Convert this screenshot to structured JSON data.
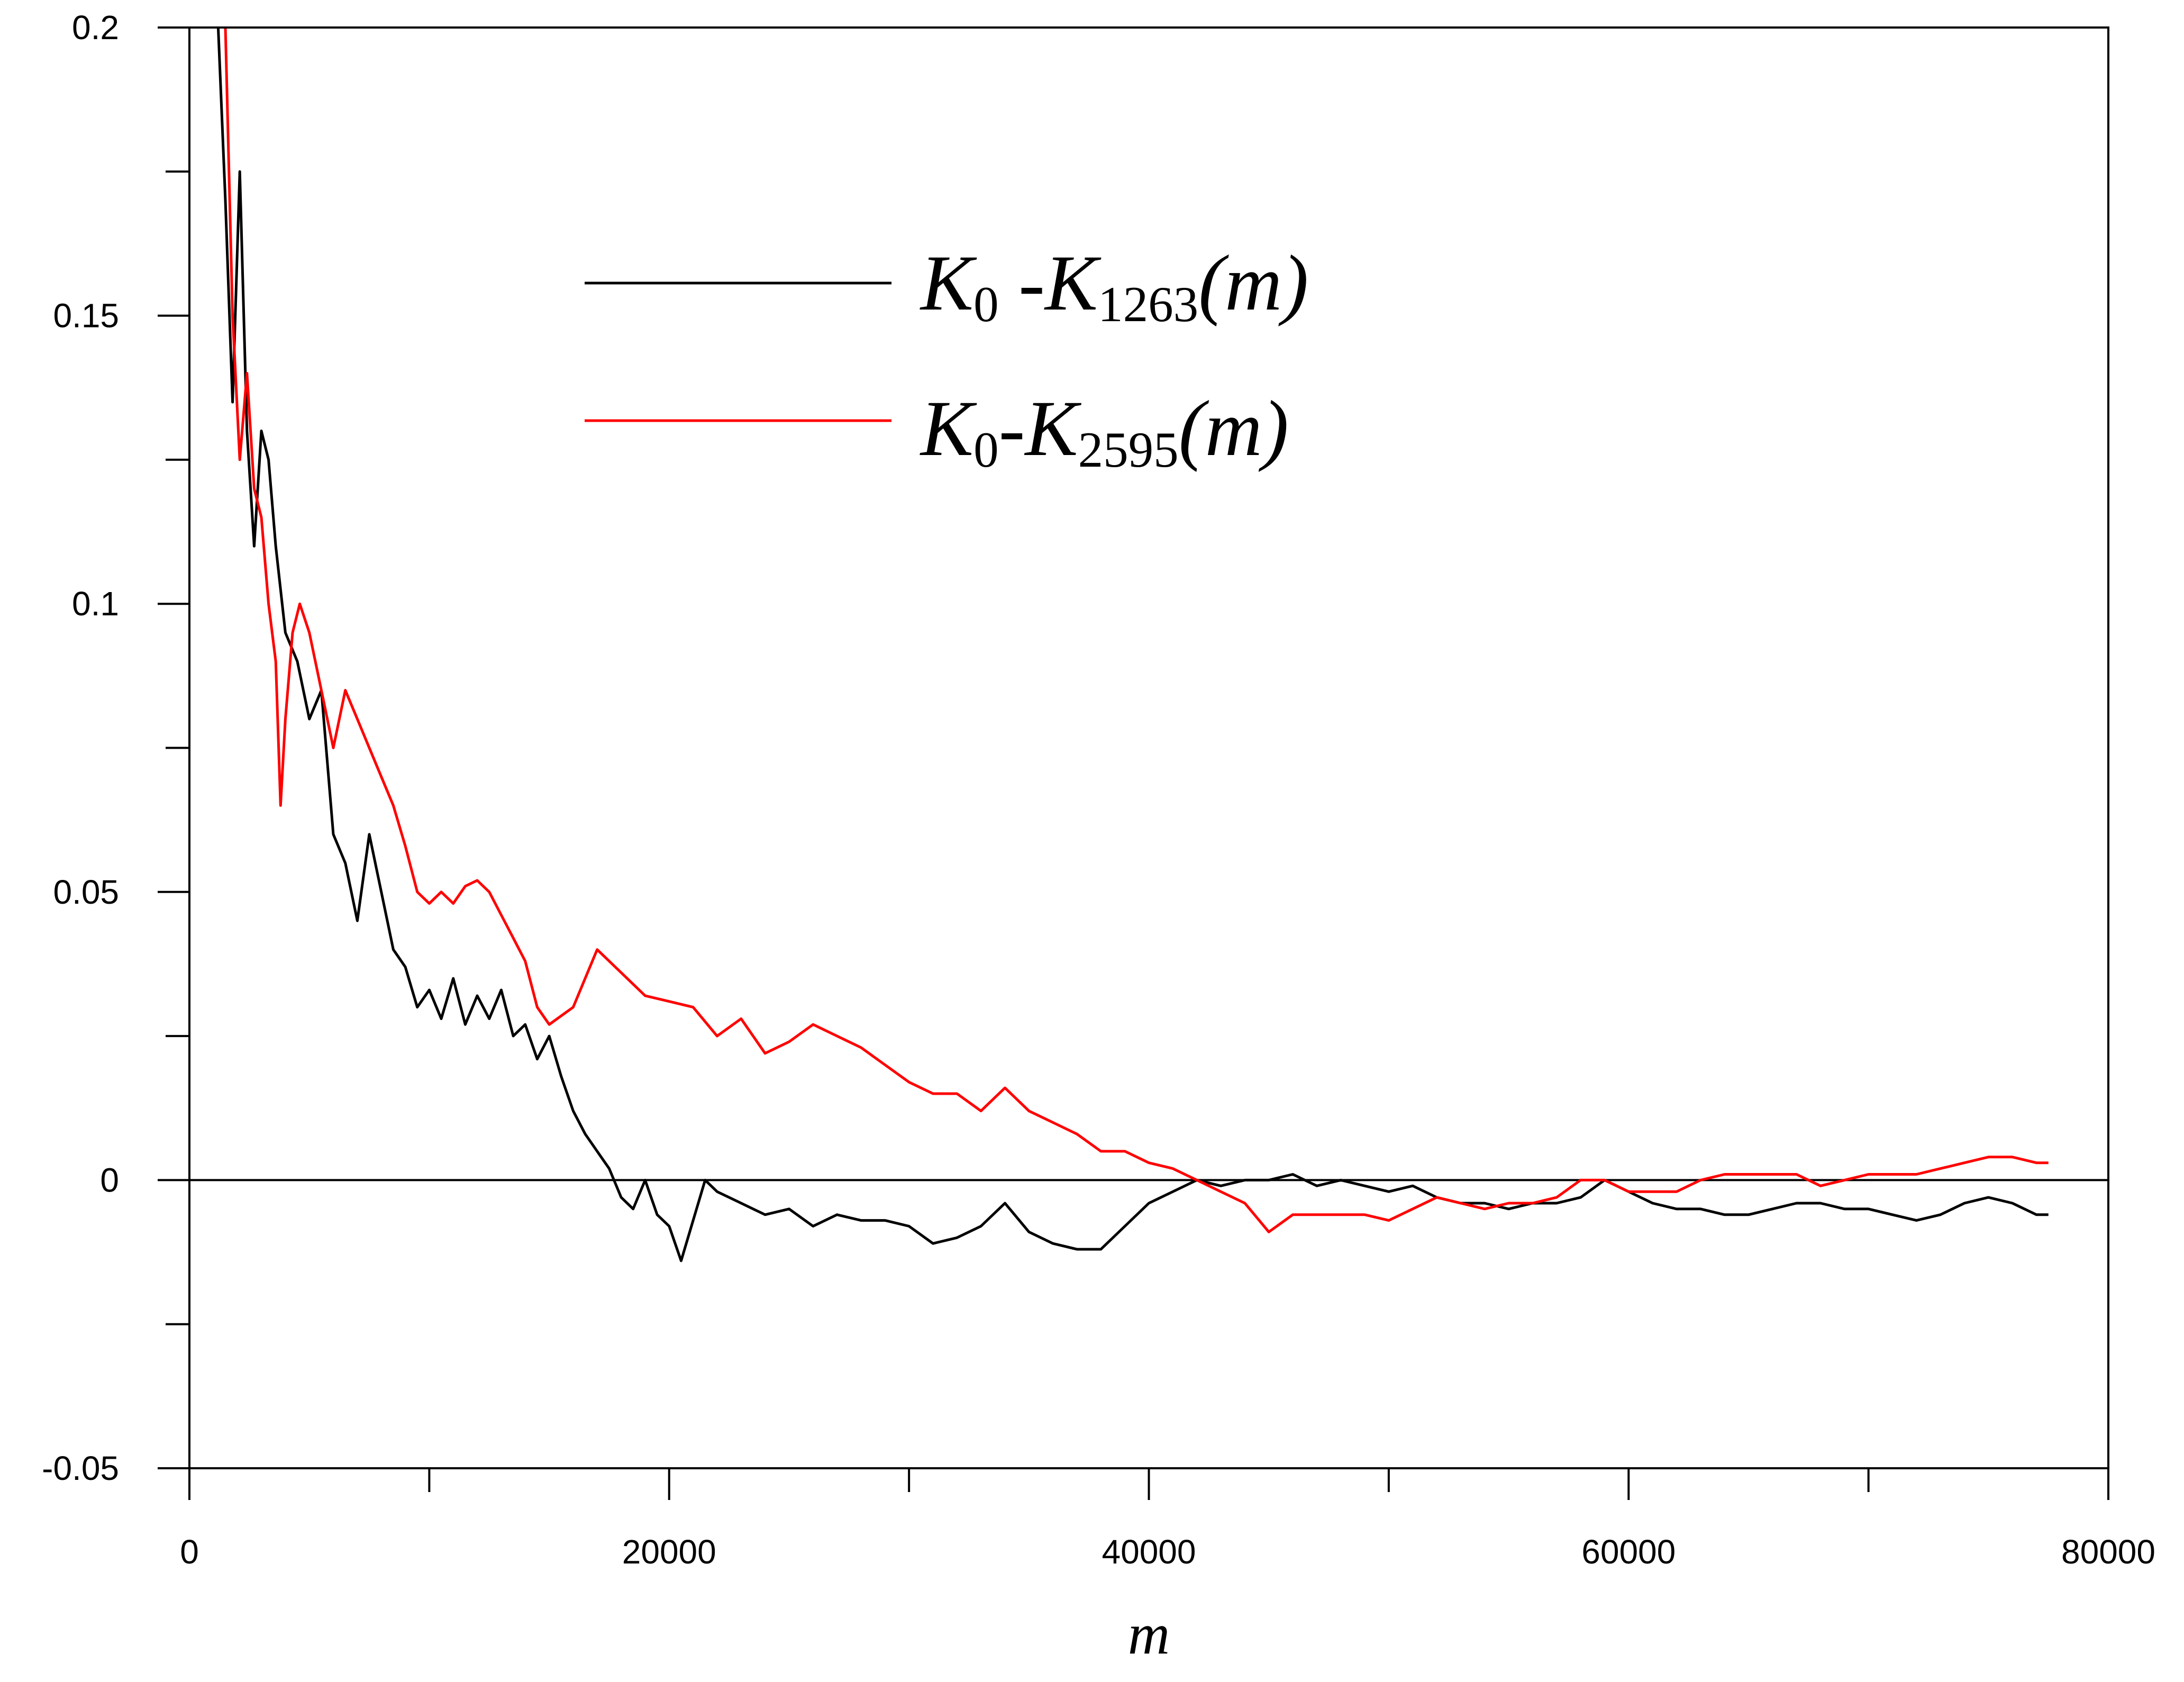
{
  "chart_data": {
    "type": "line",
    "title": "",
    "xlabel": "m",
    "ylabel": "",
    "xlim": [
      0,
      80000
    ],
    "ylim": [
      -0.05,
      0.2
    ],
    "x_ticks": [
      0,
      20000,
      40000,
      60000,
      80000
    ],
    "x_tick_labels": [
      "0",
      "20000",
      "40000",
      "60000",
      "80000"
    ],
    "y_ticks": [
      -0.05,
      0,
      0.05,
      0.1,
      0.15,
      0.2
    ],
    "y_tick_labels": [
      "-0.05",
      "0",
      "0.05",
      "0.1",
      "0.15",
      "0.2"
    ],
    "grid": false,
    "reference_line_y": 0,
    "legend_position": "top-center",
    "series": [
      {
        "legend": {
          "sym1": "K",
          "sub1": "0",
          "mid": " -",
          "sym2": "K",
          "sub2": "1263",
          "arg": "(m)"
        },
        "color": "#000000",
        "x": [
          1200,
          1500,
          1800,
          2100,
          2400,
          2700,
          3000,
          3300,
          3600,
          4000,
          4500,
          5000,
          5500,
          6000,
          6500,
          7000,
          7500,
          8000,
          8500,
          9000,
          9500,
          10000,
          10500,
          11000,
          11500,
          12000,
          12500,
          13000,
          13500,
          14000,
          14500,
          15000,
          15500,
          16000,
          16500,
          17000,
          17500,
          18000,
          18500,
          19000,
          19500,
          20000,
          20500,
          21000,
          21500,
          22000,
          23000,
          24000,
          25000,
          26000,
          27000,
          28000,
          29000,
          30000,
          31000,
          32000,
          33000,
          34000,
          35000,
          36000,
          37000,
          38000,
          39000,
          40000,
          41000,
          42000,
          43000,
          44000,
          45000,
          46000,
          47000,
          48000,
          49000,
          50000,
          51000,
          52000,
          53000,
          54000,
          55000,
          56000,
          57000,
          58000,
          59000,
          60000,
          61000,
          62000,
          63000,
          64000,
          65000,
          66000,
          67000,
          68000,
          69000,
          70000,
          71000,
          72000,
          73000,
          74000,
          75000,
          76000,
          77000,
          77500
        ],
        "y": [
          0.2,
          0.17,
          0.135,
          0.175,
          0.13,
          0.11,
          0.13,
          0.125,
          0.11,
          0.095,
          0.09,
          0.08,
          0.085,
          0.06,
          0.055,
          0.045,
          0.06,
          0.05,
          0.04,
          0.037,
          0.03,
          0.033,
          0.028,
          0.035,
          0.027,
          0.032,
          0.028,
          0.033,
          0.025,
          0.027,
          0.021,
          0.025,
          0.018,
          0.012,
          0.008,
          0.005,
          0.002,
          -0.003,
          -0.005,
          0.0,
          -0.006,
          -0.008,
          -0.014,
          -0.007,
          0.0,
          -0.002,
          -0.004,
          -0.006,
          -0.005,
          -0.008,
          -0.006,
          -0.007,
          -0.007,
          -0.008,
          -0.011,
          -0.01,
          -0.008,
          -0.004,
          -0.009,
          -0.011,
          -0.012,
          -0.012,
          -0.008,
          -0.004,
          -0.002,
          0.0,
          -0.001,
          0.0,
          0.0,
          0.001,
          -0.001,
          0.0,
          -0.001,
          -0.002,
          -0.001,
          -0.003,
          -0.004,
          -0.004,
          -0.005,
          -0.004,
          -0.004,
          -0.003,
          0.0,
          -0.002,
          -0.004,
          -0.005,
          -0.005,
          -0.006,
          -0.006,
          -0.005,
          -0.004,
          -0.004,
          -0.005,
          -0.005,
          -0.006,
          -0.007,
          -0.006,
          -0.004,
          -0.003,
          -0.004,
          -0.006,
          -0.006
        ]
      },
      {
        "legend": {
          "sym1": "K",
          "sub1": "0",
          "mid": "-",
          "sym2": "K",
          "sub2": "2595",
          "arg": "(m)"
        },
        "color": "#ff0000",
        "x": [
          1500,
          1800,
          2100,
          2400,
          2700,
          3000,
          3300,
          3600,
          3800,
          4000,
          4300,
          4600,
          5000,
          5500,
          6000,
          6500,
          7000,
          7500,
          8000,
          8500,
          9000,
          9500,
          10000,
          10500,
          11000,
          11500,
          12000,
          12500,
          13000,
          13500,
          14000,
          14500,
          15000,
          16000,
          17000,
          18000,
          19000,
          20000,
          21000,
          22000,
          23000,
          24000,
          25000,
          26000,
          27000,
          28000,
          29000,
          30000,
          31000,
          32000,
          33000,
          34000,
          35000,
          36000,
          37000,
          38000,
          39000,
          40000,
          41000,
          42000,
          43000,
          44000,
          45000,
          46000,
          47000,
          48000,
          49000,
          50000,
          51000,
          52000,
          53000,
          54000,
          55000,
          56000,
          57000,
          58000,
          59000,
          60000,
          61000,
          62000,
          63000,
          64000,
          65000,
          66000,
          67000,
          68000,
          69000,
          70000,
          71000,
          72000,
          73000,
          74000,
          75000,
          76000,
          77000,
          77500
        ],
        "y": [
          0.2,
          0.15,
          0.125,
          0.14,
          0.12,
          0.115,
          0.1,
          0.09,
          0.065,
          0.08,
          0.095,
          0.1,
          0.095,
          0.085,
          0.075,
          0.085,
          0.08,
          0.075,
          0.07,
          0.065,
          0.058,
          0.05,
          0.048,
          0.05,
          0.048,
          0.051,
          0.052,
          0.05,
          0.046,
          0.042,
          0.038,
          0.03,
          0.027,
          0.03,
          0.04,
          0.036,
          0.032,
          0.031,
          0.03,
          0.025,
          0.028,
          0.022,
          0.024,
          0.027,
          0.025,
          0.023,
          0.02,
          0.017,
          0.015,
          0.015,
          0.012,
          0.016,
          0.012,
          0.01,
          0.008,
          0.005,
          0.005,
          0.003,
          0.002,
          0.0,
          -0.002,
          -0.004,
          -0.009,
          -0.006,
          -0.006,
          -0.006,
          -0.006,
          -0.007,
          -0.005,
          -0.003,
          -0.004,
          -0.005,
          -0.004,
          -0.004,
          -0.003,
          0.0,
          0.0,
          -0.002,
          -0.002,
          -0.002,
          0.0,
          0.001,
          0.001,
          0.001,
          0.001,
          -0.001,
          0.0,
          0.001,
          0.001,
          0.001,
          0.002,
          0.003,
          0.004,
          0.004,
          0.003,
          0.003
        ]
      }
    ]
  }
}
